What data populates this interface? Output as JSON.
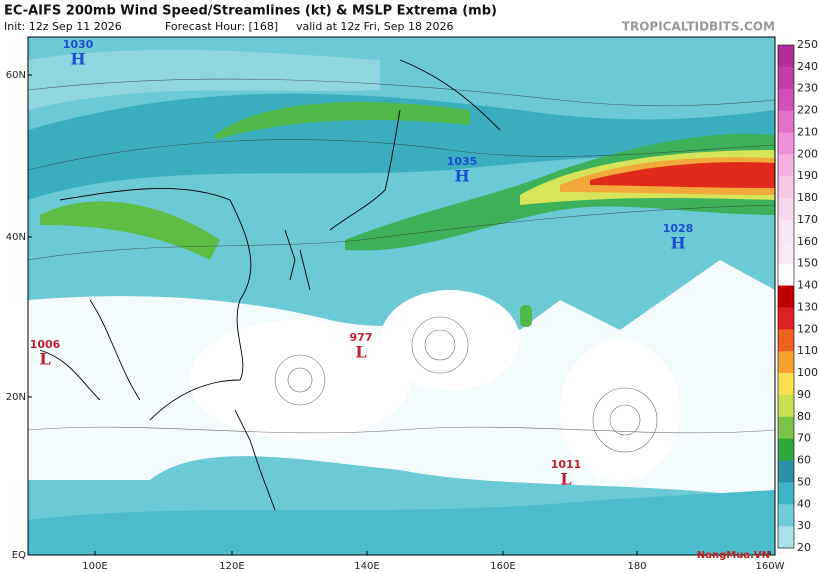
{
  "header": {
    "title": "EC-AIFS 200mb Wind Speed/Streamlines (kt) & MSLP Extrema (mb)",
    "init": "Init: 12z Sep 11 2026",
    "forecast_hour": "Forecast Hour: [168]",
    "valid": "valid at 12z Fri, Sep 18 2026",
    "watermark": "TROPICALTIDBITS.COM"
  },
  "latitude_labels": [
    "60N",
    "40N",
    "20N",
    "EQ"
  ],
  "longitude_labels": [
    "100E",
    "120E",
    "140E",
    "160E",
    "180",
    "160W"
  ],
  "pressure_extrema": [
    {
      "value": "1030",
      "symbol": "H"
    },
    {
      "value": "1035",
      "symbol": "H"
    },
    {
      "value": "1028",
      "symbol": "H"
    },
    {
      "value": "1006",
      "symbol": "L"
    },
    {
      "value": "977",
      "symbol": "L"
    },
    {
      "value": "1011",
      "symbol": "L"
    }
  ],
  "colorbar": {
    "ticks": [
      "250",
      "240",
      "230",
      "220",
      "210",
      "200",
      "190",
      "180",
      "170",
      "160",
      "150",
      "140",
      "130",
      "120",
      "110",
      "100",
      "90",
      "80",
      "70",
      "60",
      "50",
      "40",
      "30",
      "20"
    ],
    "colors": [
      "#b03098",
      "#c040a8",
      "#d050b8",
      "#e070c8",
      "#f090d8",
      "#f8b0e0",
      "#f8c8e8",
      "#f8d8ee",
      "#f8e4f2",
      "#fae8f4",
      "#ffffff",
      "#c00000",
      "#e02020",
      "#f06020",
      "#f8a030",
      "#f8e050",
      "#c8e050",
      "#78c448",
      "#2ea83c",
      "#2a90a8",
      "#40b4c8",
      "#70ccd8",
      "#a8e0e8"
    ]
  },
  "logo": "NangMua.VN"
}
